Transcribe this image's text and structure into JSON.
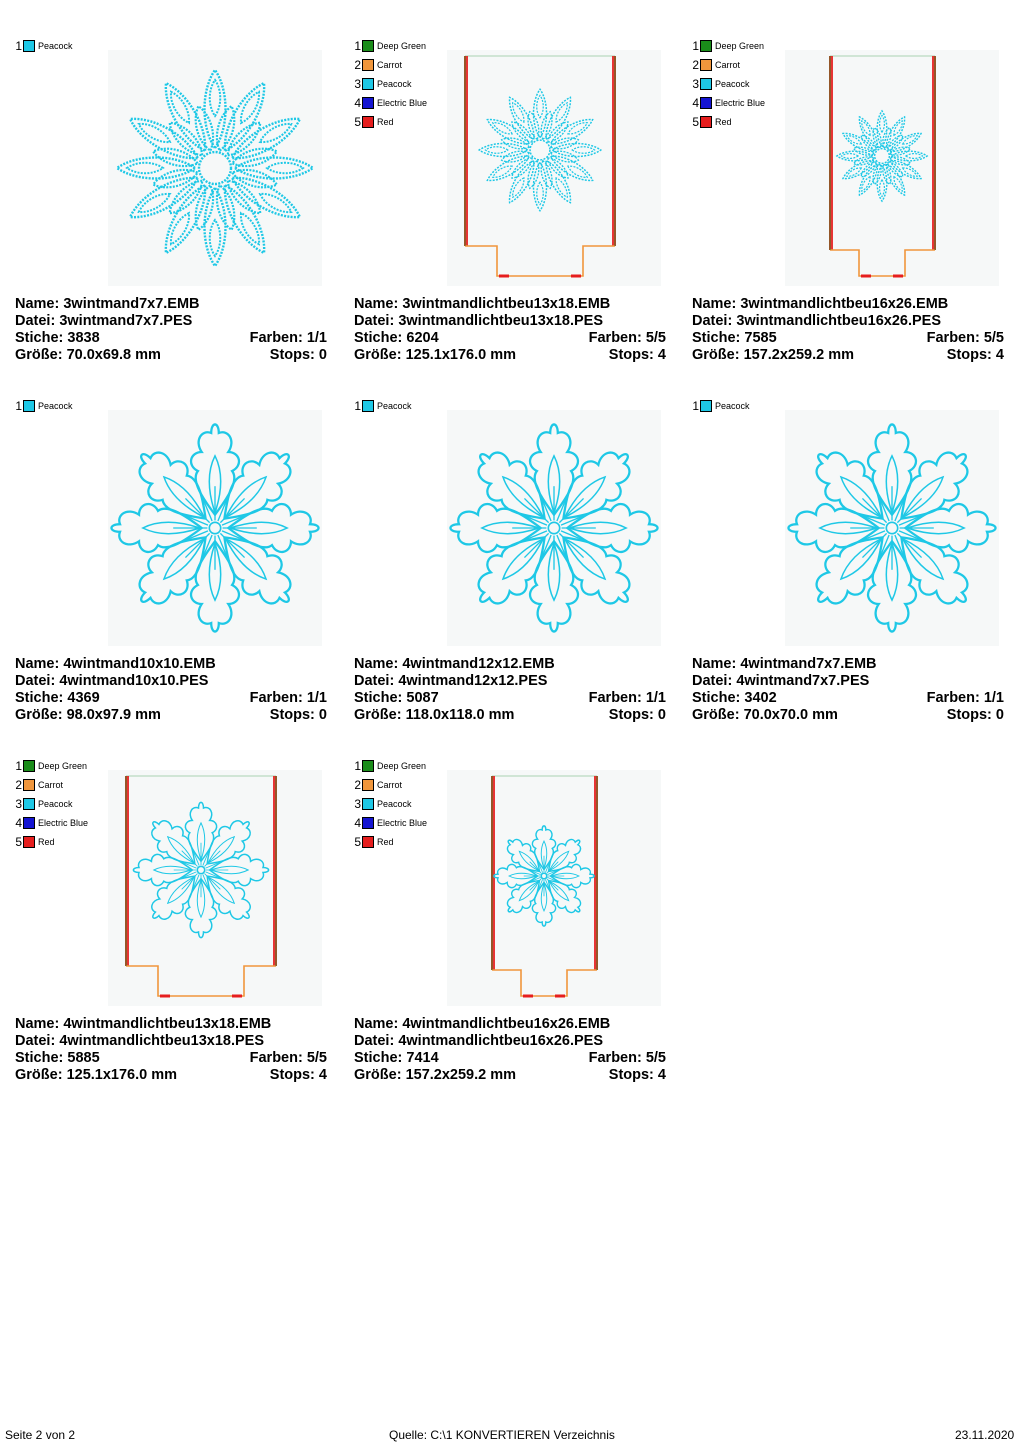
{
  "labels": {
    "name": "Name:",
    "file": "Datei:",
    "stitches": "Stiche:",
    "colors": "Farben:",
    "size": "Größe:",
    "stops": "Stops:"
  },
  "colors": {
    "Deep Green": "#1a8c1a",
    "Carrot": "#f0963c",
    "Peacock": "#1ec8e6",
    "Electric Blue": "#1414d2",
    "Red": "#e61e1e"
  },
  "designs": [
    {
      "name": "3wintmand7x7.EMB",
      "file": "3wintmand7x7.PES",
      "stitches": "3838",
      "colors": "1/1",
      "size": "70.0x69.8 mm",
      "stops": "0",
      "thread_list": [
        {
          "num": "1",
          "name": "Peacock"
        }
      ],
      "motif": "mandala-3",
      "frame": "none",
      "scale": 1.0
    },
    {
      "name": "3wintmandlichtbeu13x18.EMB",
      "file": "3wintmandlichtbeu13x18.PES",
      "stitches": "6204",
      "colors": "5/5",
      "size": "125.1x176.0 mm",
      "stops": "4",
      "thread_list": [
        {
          "num": "1",
          "name": "Deep Green"
        },
        {
          "num": "2",
          "name": "Carrot"
        },
        {
          "num": "3",
          "name": "Peacock"
        },
        {
          "num": "4",
          "name": "Electric Blue"
        },
        {
          "num": "5",
          "name": "Red"
        }
      ],
      "motif": "mandala-3",
      "frame": "wide",
      "scale": 0.56
    },
    {
      "name": "3wintmandlichtbeu16x26.EMB",
      "file": "3wintmandlichtbeu16x26.PES",
      "stitches": "7585",
      "colors": "5/5",
      "size": "157.2x259.2 mm",
      "stops": "4",
      "thread_list": [
        {
          "num": "1",
          "name": "Deep Green"
        },
        {
          "num": "2",
          "name": "Carrot"
        },
        {
          "num": "3",
          "name": "Peacock"
        },
        {
          "num": "4",
          "name": "Electric Blue"
        },
        {
          "num": "5",
          "name": "Red"
        }
      ],
      "motif": "mandala-3",
      "frame": "tall",
      "scale": 0.45
    },
    {
      "name": "4wintmand10x10.EMB",
      "file": "4wintmand10x10.PES",
      "stitches": "4369",
      "colors": "1/1",
      "size": "98.0x97.9 mm",
      "stops": "0",
      "thread_list": [
        {
          "num": "1",
          "name": "Peacock"
        }
      ],
      "motif": "mandala-4",
      "frame": "none",
      "scale": 1.0
    },
    {
      "name": "4wintmand12x12.EMB",
      "file": "4wintmand12x12.PES",
      "stitches": "5087",
      "colors": "1/1",
      "size": "118.0x118.0 mm",
      "stops": "0",
      "thread_list": [
        {
          "num": "1",
          "name": "Peacock"
        }
      ],
      "motif": "mandala-4",
      "frame": "none",
      "scale": 1.0
    },
    {
      "name": "4wintmand7x7.EMB",
      "file": "4wintmand7x7.PES",
      "stitches": "3402",
      "colors": "1/1",
      "size": "70.0x70.0 mm",
      "stops": "0",
      "thread_list": [
        {
          "num": "1",
          "name": "Peacock"
        }
      ],
      "motif": "mandala-4",
      "frame": "none",
      "scale": 1.0
    },
    {
      "name": "4wintmandlichtbeu13x18.EMB",
      "file": "4wintmandlichtbeu13x18.PES",
      "stitches": "5885",
      "colors": "5/5",
      "size": "125.1x176.0 mm",
      "stops": "4",
      "thread_list": [
        {
          "num": "1",
          "name": "Deep Green"
        },
        {
          "num": "2",
          "name": "Carrot"
        },
        {
          "num": "3",
          "name": "Peacock"
        },
        {
          "num": "4",
          "name": "Electric Blue"
        },
        {
          "num": "5",
          "name": "Red"
        }
      ],
      "motif": "mandala-4",
      "frame": "wide",
      "scale": 0.56
    },
    {
      "name": "4wintmandlichtbeu16x26.EMB",
      "file": "4wintmandlichtbeu16x26.PES",
      "stitches": "7414",
      "colors": "5/5",
      "size": "157.2x259.2 mm",
      "stops": "4",
      "thread_list": [
        {
          "num": "1",
          "name": "Deep Green"
        },
        {
          "num": "2",
          "name": "Carrot"
        },
        {
          "num": "3",
          "name": "Peacock"
        },
        {
          "num": "4",
          "name": "Electric Blue"
        },
        {
          "num": "5",
          "name": "Red"
        }
      ],
      "motif": "mandala-4",
      "frame": "tall",
      "scale": 0.45
    }
  ],
  "footer": {
    "page": "Seite 2 von 2",
    "source": "Quelle: C:\\1 KONVERTIEREN Verzeichnis",
    "date": "23.11.2020"
  }
}
